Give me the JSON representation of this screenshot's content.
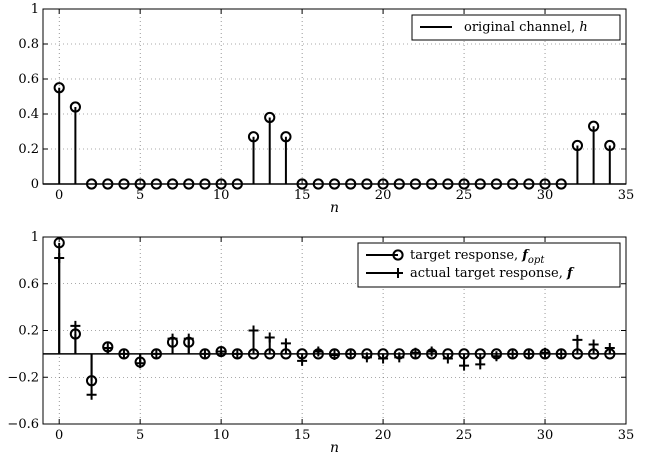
{
  "chart_data": [
    {
      "type": "stem",
      "title": "",
      "xlabel": "n",
      "ylabel": "",
      "xlim": [
        -1,
        35
      ],
      "ylim": [
        0,
        1
      ],
      "xticks": [
        0,
        5,
        10,
        15,
        20,
        25,
        30,
        35
      ],
      "yticks": [
        0,
        0.2,
        0.4,
        0.6,
        0.8,
        1
      ],
      "ytick_labels": [
        "0",
        "0.2",
        "0.4",
        "0.6",
        "0.8",
        "1"
      ],
      "grid": true,
      "legend_position": "top-right",
      "series": [
        {
          "name": "original channel, h",
          "label_text": "original channel, ",
          "label_symbol": "h",
          "marker": "circle",
          "x": [
            0,
            1,
            2,
            3,
            4,
            5,
            6,
            7,
            8,
            9,
            10,
            11,
            12,
            13,
            14,
            15,
            16,
            17,
            18,
            19,
            20,
            21,
            22,
            23,
            24,
            25,
            26,
            27,
            28,
            29,
            30,
            31,
            32,
            33,
            34
          ],
          "y": [
            0.55,
            0.44,
            0,
            0,
            0,
            0,
            0,
            0,
            0,
            0,
            0,
            0,
            0.27,
            0.38,
            0.27,
            0,
            0,
            0,
            0,
            0,
            0,
            0,
            0,
            0,
            0,
            0,
            0,
            0,
            0,
            0,
            0,
            0,
            0.22,
            0.33,
            0.22
          ]
        }
      ]
    },
    {
      "type": "stem",
      "title": "",
      "xlabel": "n",
      "ylabel": "",
      "xlim": [
        -1,
        35
      ],
      "ylim": [
        -0.6,
        1
      ],
      "xticks": [
        0,
        5,
        10,
        15,
        20,
        25,
        30,
        35
      ],
      "yticks": [
        -0.6,
        -0.2,
        0.2,
        0.6,
        1
      ],
      "ytick_labels": [
        "−0.6",
        "−0.2",
        "0.2",
        "0.6",
        "1"
      ],
      "grid": true,
      "legend_position": "top-right",
      "series": [
        {
          "name": "target response, f_opt",
          "label_text": "target response, ",
          "label_symbol": "f",
          "label_sub": "opt",
          "marker": "circle",
          "x": [
            0,
            1,
            2,
            3,
            4,
            5,
            6,
            7,
            8,
            9,
            10,
            11,
            12,
            13,
            14,
            15,
            16,
            17,
            18,
            19,
            20,
            21,
            22,
            23,
            24,
            25,
            26,
            27,
            28,
            29,
            30,
            31,
            32,
            33,
            34
          ],
          "y": [
            0.95,
            0.17,
            -0.23,
            0.06,
            0,
            -0.07,
            0,
            0.1,
            0.1,
            0,
            0.02,
            0,
            0,
            0,
            0,
            0,
            0,
            0,
            0,
            0,
            0,
            0,
            0,
            0,
            0,
            0,
            0,
            0,
            0,
            0,
            0,
            0,
            0,
            0,
            0
          ]
        },
        {
          "name": "actual target response, f",
          "label_text": "actual target response, ",
          "label_symbol": "f",
          "marker": "plus",
          "x": [
            0,
            1,
            2,
            3,
            4,
            5,
            6,
            7,
            8,
            9,
            10,
            11,
            12,
            13,
            14,
            15,
            16,
            17,
            18,
            19,
            20,
            21,
            22,
            23,
            24,
            25,
            26,
            27,
            28,
            29,
            30,
            31,
            32,
            33,
            34
          ],
          "y": [
            0.82,
            0.24,
            -0.35,
            0.05,
            0,
            -0.08,
            0,
            0.13,
            0.13,
            0,
            0.02,
            0,
            0.2,
            0.14,
            0.09,
            -0.06,
            0.02,
            -0.01,
            0,
            -0.03,
            -0.04,
            -0.03,
            0.01,
            0.02,
            -0.04,
            -0.1,
            -0.09,
            -0.02,
            0,
            0,
            0.01,
            0,
            0.12,
            0.08,
            0.05
          ]
        }
      ]
    }
  ]
}
